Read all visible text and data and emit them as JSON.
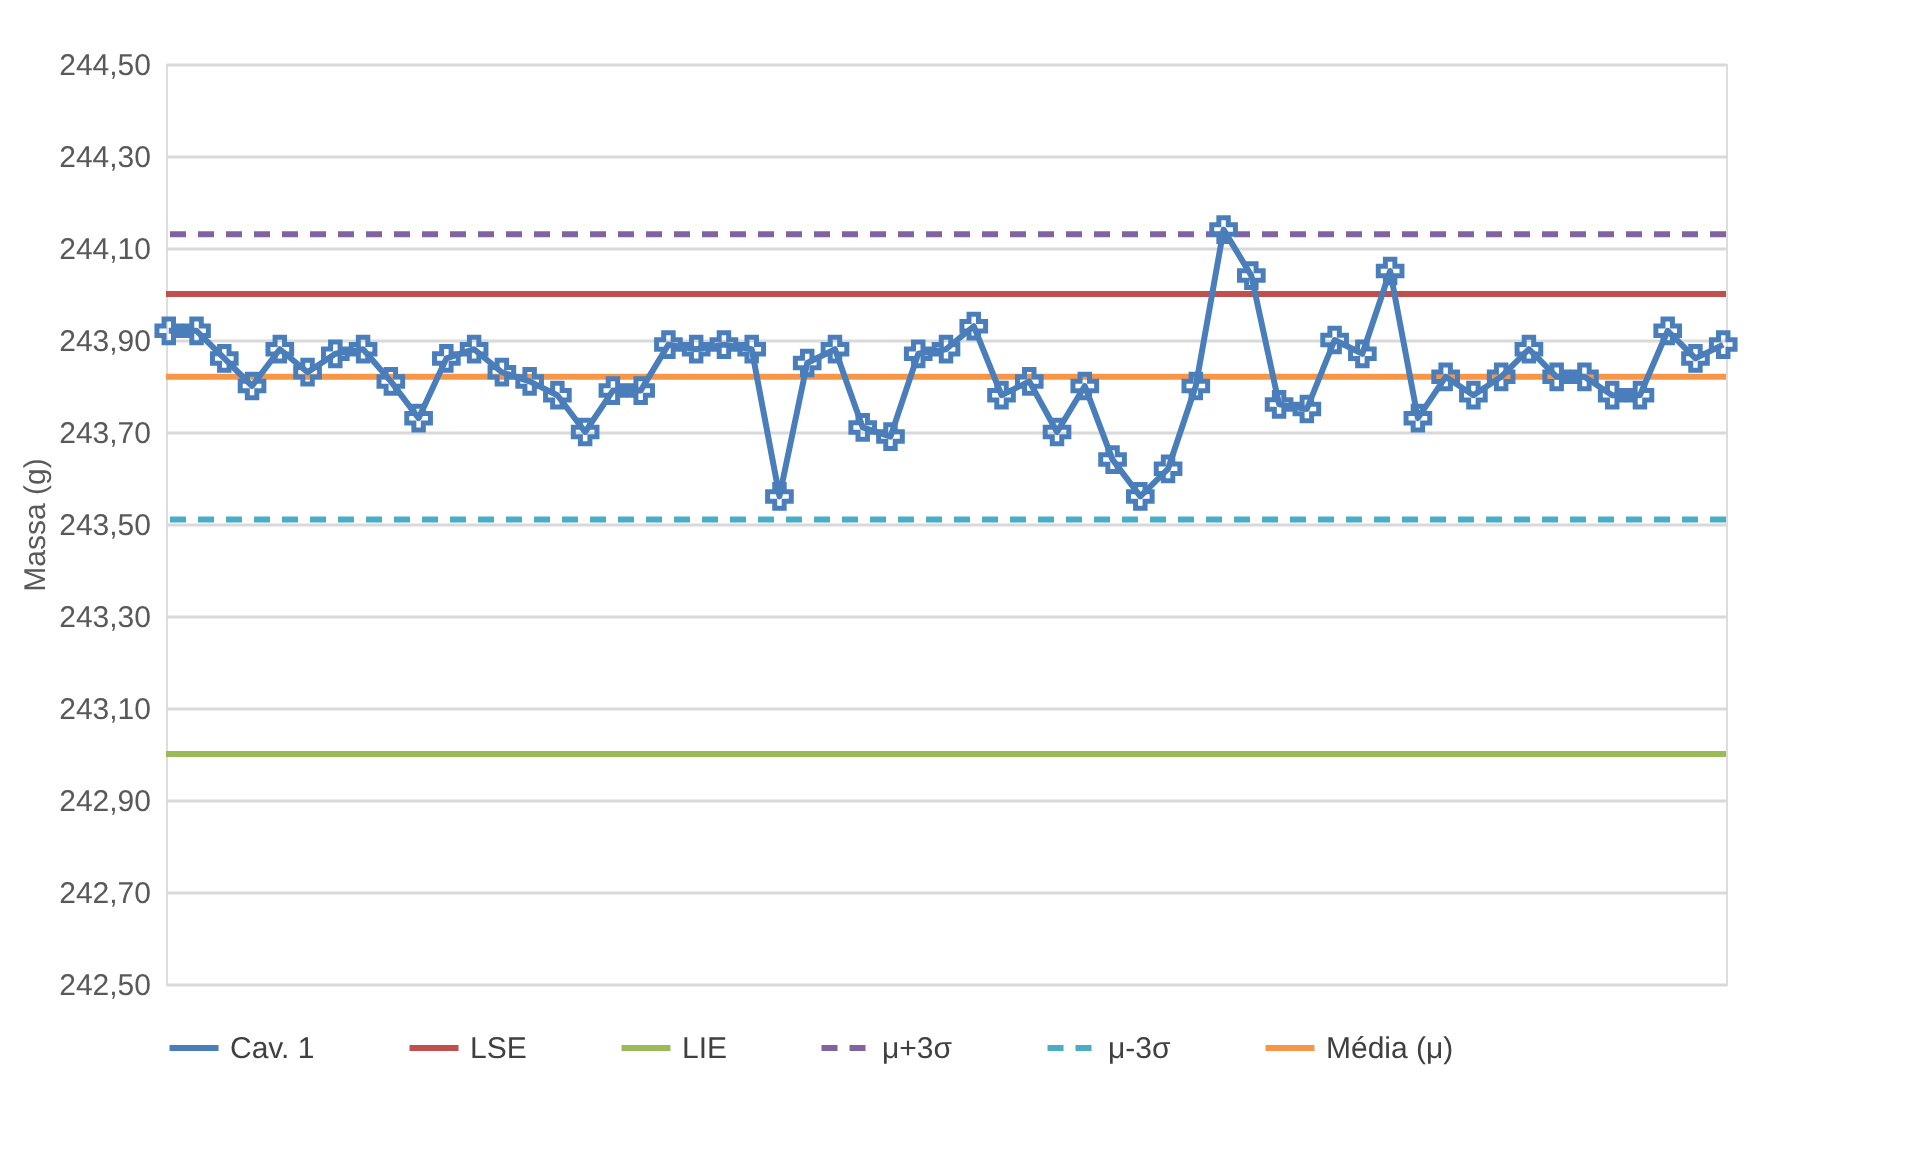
{
  "chart_data": {
    "type": "line",
    "ylabel": "Massa (g)",
    "categories": [
      null,
      null,
      null,
      null,
      null,
      null,
      null,
      null,
      null,
      null,
      null,
      null,
      null,
      null,
      null,
      null,
      null,
      null,
      null,
      null,
      null,
      null,
      null,
      null,
      null,
      null,
      null,
      null,
      null,
      null,
      null,
      null,
      null,
      null,
      null,
      null,
      null,
      null,
      null,
      null,
      null,
      null,
      null,
      null,
      null,
      null,
      null,
      null,
      null,
      null,
      null,
      null,
      null,
      null,
      null,
      null,
      null
    ],
    "series": [
      {
        "name": "Cav. 1",
        "color": "#4a7ebb",
        "values": [
          243.92,
          243.92,
          243.86,
          243.8,
          243.88,
          243.83,
          243.87,
          243.88,
          243.81,
          243.73,
          243.86,
          243.88,
          243.83,
          243.81,
          243.78,
          243.7,
          243.79,
          243.79,
          243.89,
          243.88,
          243.89,
          243.88,
          243.56,
          243.85,
          243.88,
          243.71,
          243.69,
          243.87,
          243.88,
          243.93,
          243.78,
          243.81,
          243.7,
          243.8,
          243.64,
          243.56,
          243.62,
          243.8,
          244.14,
          244.04,
          243.76,
          243.75,
          243.9,
          243.87,
          244.05,
          243.73,
          243.82,
          243.78,
          243.82,
          243.88,
          243.82,
          243.82,
          243.78,
          243.78,
          243.92,
          243.86,
          243.89
        ]
      }
    ],
    "ref_lines": [
      {
        "axis": "y",
        "value": 244.0,
        "label": "LSE",
        "color": "#c0504d",
        "line_style": "solid"
      },
      {
        "axis": "y",
        "value": 243.0,
        "label": "LIE",
        "color": "#9bbb59",
        "line_style": "solid"
      },
      {
        "axis": "y",
        "value": 244.13,
        "label": "μ+3σ",
        "color": "#8064a2",
        "line_style": "dashed"
      },
      {
        "axis": "y",
        "value": 243.51,
        "label": "μ-3σ",
        "color": "#4bacc6",
        "line_style": "dashed"
      },
      {
        "axis": "y",
        "value": 243.82,
        "label": "Média (μ)",
        "color": "#f79646",
        "line_style": "solid"
      }
    ],
    "ylim": [
      242.5,
      244.5
    ],
    "yticks": [
      {
        "value": 242.5,
        "label": "242,50"
      },
      {
        "value": 242.7,
        "label": "242,70"
      },
      {
        "value": 242.9,
        "label": "242,90"
      },
      {
        "value": 243.1,
        "label": "243,10"
      },
      {
        "value": 243.3,
        "label": "243,30"
      },
      {
        "value": 243.5,
        "label": "243,50"
      },
      {
        "value": 243.7,
        "label": "243,70"
      },
      {
        "value": 243.9,
        "label": "243,90"
      },
      {
        "value": 244.1,
        "label": "244,10"
      },
      {
        "value": 244.3,
        "label": "244,30"
      },
      {
        "value": 244.5,
        "label": "244,50"
      }
    ],
    "grid": "y",
    "legend": "bottom",
    "marker": "cross",
    "line_style": "solid",
    "tick_labels": "y"
  }
}
